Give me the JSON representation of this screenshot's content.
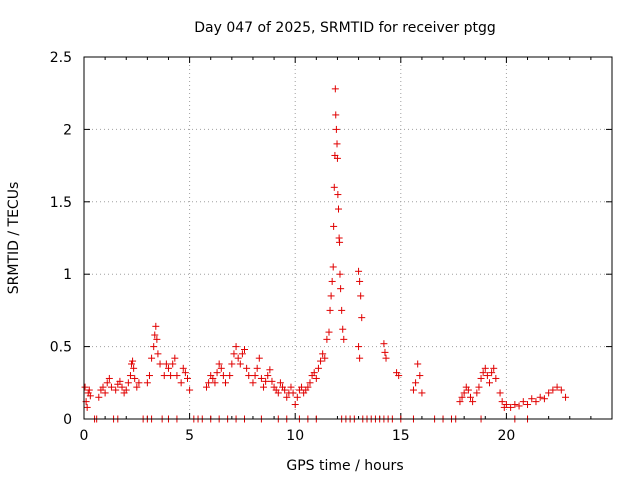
{
  "chart_data": {
    "type": "scatter",
    "title": "Day 047 of 2025, SRMTID for receiver ptgg",
    "xlabel": "GPS time / hours",
    "ylabel": "SRMTID / TECUs",
    "xlim": [
      0,
      25
    ],
    "ylim": [
      0,
      2.5
    ],
    "x_ticks": [
      0,
      5,
      10,
      15,
      20
    ],
    "x_tick_labels": [
      "0",
      "5",
      "10",
      "15",
      "20"
    ],
    "y_ticks": [
      0,
      0.5,
      1,
      1.5,
      2,
      2.5
    ],
    "y_tick_labels": [
      "0",
      "0.5",
      "1",
      "1.5",
      "2",
      "2.5"
    ],
    "grid": true,
    "marker": "plus",
    "color": "#e00000",
    "series": [
      {
        "name": "SRMTID",
        "points": [
          [
            0.05,
            0.22
          ],
          [
            0.1,
            0.12
          ],
          [
            0.15,
            0.08
          ],
          [
            0.2,
            0.18
          ],
          [
            0.25,
            0.2
          ],
          [
            0.3,
            0.16
          ],
          [
            0.7,
            0.15
          ],
          [
            0.8,
            0.2
          ],
          [
            0.9,
            0.22
          ],
          [
            1.0,
            0.18
          ],
          [
            1.1,
            0.25
          ],
          [
            1.2,
            0.28
          ],
          [
            1.3,
            0.22
          ],
          [
            1.5,
            0.2
          ],
          [
            1.6,
            0.24
          ],
          [
            1.7,
            0.26
          ],
          [
            1.8,
            0.22
          ],
          [
            1.9,
            0.18
          ],
          [
            2.0,
            0.2
          ],
          [
            2.1,
            0.25
          ],
          [
            2.2,
            0.3
          ],
          [
            2.25,
            0.38
          ],
          [
            2.3,
            0.4
          ],
          [
            2.35,
            0.35
          ],
          [
            2.4,
            0.28
          ],
          [
            2.5,
            0.22
          ],
          [
            2.6,
            0.25
          ],
          [
            3.0,
            0.25
          ],
          [
            3.1,
            0.3
          ],
          [
            3.2,
            0.42
          ],
          [
            3.3,
            0.5
          ],
          [
            3.35,
            0.58
          ],
          [
            3.4,
            0.64
          ],
          [
            3.45,
            0.55
          ],
          [
            3.5,
            0.45
          ],
          [
            3.6,
            0.38
          ],
          [
            3.8,
            0.3
          ],
          [
            3.9,
            0.38
          ],
          [
            4.0,
            0.35
          ],
          [
            4.1,
            0.3
          ],
          [
            4.2,
            0.38
          ],
          [
            4.3,
            0.42
          ],
          [
            4.4,
            0.3
          ],
          [
            4.6,
            0.25
          ],
          [
            4.7,
            0.35
          ],
          [
            4.8,
            0.32
          ],
          [
            4.9,
            0.28
          ],
          [
            5.0,
            0.2
          ],
          [
            5.8,
            0.22
          ],
          [
            5.9,
            0.25
          ],
          [
            6.0,
            0.3
          ],
          [
            6.1,
            0.28
          ],
          [
            6.2,
            0.25
          ],
          [
            6.3,
            0.32
          ],
          [
            6.4,
            0.38
          ],
          [
            6.5,
            0.35
          ],
          [
            6.6,
            0.3
          ],
          [
            6.7,
            0.25
          ],
          [
            6.9,
            0.3
          ],
          [
            7.0,
            0.38
          ],
          [
            7.1,
            0.45
          ],
          [
            7.2,
            0.5
          ],
          [
            7.3,
            0.42
          ],
          [
            7.4,
            0.38
          ],
          [
            7.5,
            0.45
          ],
          [
            7.6,
            0.48
          ],
          [
            7.7,
            0.35
          ],
          [
            7.8,
            0.3
          ],
          [
            8.0,
            0.25
          ],
          [
            8.1,
            0.3
          ],
          [
            8.2,
            0.35
          ],
          [
            8.3,
            0.42
          ],
          [
            8.4,
            0.28
          ],
          [
            8.5,
            0.22
          ],
          [
            8.6,
            0.26
          ],
          [
            8.7,
            0.3
          ],
          [
            8.8,
            0.34
          ],
          [
            8.9,
            0.26
          ],
          [
            9.0,
            0.22
          ],
          [
            9.1,
            0.2
          ],
          [
            9.2,
            0.18
          ],
          [
            9.3,
            0.25
          ],
          [
            9.4,
            0.22
          ],
          [
            9.5,
            0.2
          ],
          [
            9.6,
            0.15
          ],
          [
            9.7,
            0.18
          ],
          [
            9.8,
            0.22
          ],
          [
            9.9,
            0.18
          ],
          [
            10.0,
            0.1
          ],
          [
            10.1,
            0.15
          ],
          [
            10.2,
            0.2
          ],
          [
            10.3,
            0.22
          ],
          [
            10.4,
            0.18
          ],
          [
            10.5,
            0.2
          ],
          [
            10.6,
            0.22
          ],
          [
            10.7,
            0.25
          ],
          [
            10.8,
            0.3
          ],
          [
            10.9,
            0.32
          ],
          [
            11.0,
            0.28
          ],
          [
            11.1,
            0.35
          ],
          [
            11.2,
            0.4
          ],
          [
            11.3,
            0.45
          ],
          [
            11.4,
            0.42
          ],
          [
            11.5,
            0.55
          ],
          [
            11.6,
            0.6
          ],
          [
            11.65,
            0.75
          ],
          [
            11.7,
            0.85
          ],
          [
            11.75,
            0.95
          ],
          [
            11.8,
            1.05
          ],
          [
            11.82,
            1.33
          ],
          [
            11.85,
            1.6
          ],
          [
            11.88,
            1.82
          ],
          [
            11.9,
            2.28
          ],
          [
            11.92,
            2.1
          ],
          [
            11.95,
            2.0
          ],
          [
            11.98,
            1.9
          ],
          [
            12.0,
            1.8
          ],
          [
            12.02,
            1.55
          ],
          [
            12.05,
            1.45
          ],
          [
            12.08,
            1.25
          ],
          [
            12.1,
            1.22
          ],
          [
            12.12,
            1.0
          ],
          [
            12.15,
            0.9
          ],
          [
            12.2,
            0.75
          ],
          [
            12.25,
            0.62
          ],
          [
            12.3,
            0.55
          ],
          [
            13.0,
            1.02
          ],
          [
            13.05,
            0.95
          ],
          [
            13.1,
            0.85
          ],
          [
            13.15,
            0.7
          ],
          [
            13.0,
            0.5
          ],
          [
            13.05,
            0.42
          ],
          [
            14.2,
            0.52
          ],
          [
            14.25,
            0.46
          ],
          [
            14.3,
            0.42
          ],
          [
            14.8,
            0.32
          ],
          [
            14.9,
            0.3
          ],
          [
            15.6,
            0.2
          ],
          [
            15.7,
            0.25
          ],
          [
            15.8,
            0.38
          ],
          [
            15.9,
            0.3
          ],
          [
            16.0,
            0.18
          ],
          [
            17.8,
            0.12
          ],
          [
            17.9,
            0.15
          ],
          [
            18.0,
            0.18
          ],
          [
            18.1,
            0.22
          ],
          [
            18.2,
            0.2
          ],
          [
            18.3,
            0.15
          ],
          [
            18.4,
            0.12
          ],
          [
            18.6,
            0.18
          ],
          [
            18.7,
            0.22
          ],
          [
            18.8,
            0.28
          ],
          [
            18.9,
            0.32
          ],
          [
            19.0,
            0.35
          ],
          [
            19.1,
            0.3
          ],
          [
            19.2,
            0.25
          ],
          [
            19.3,
            0.32
          ],
          [
            19.4,
            0.35
          ],
          [
            19.5,
            0.28
          ],
          [
            19.7,
            0.18
          ],
          [
            19.8,
            0.12
          ],
          [
            19.9,
            0.08
          ],
          [
            20.0,
            0.1
          ],
          [
            20.2,
            0.08
          ],
          [
            20.4,
            0.1
          ],
          [
            20.6,
            0.09
          ],
          [
            20.8,
            0.12
          ],
          [
            21.0,
            0.1
          ],
          [
            21.2,
            0.14
          ],
          [
            21.4,
            0.12
          ],
          [
            21.6,
            0.15
          ],
          [
            21.8,
            0.14
          ],
          [
            22.0,
            0.18
          ],
          [
            22.2,
            0.2
          ],
          [
            22.4,
            0.22
          ],
          [
            22.6,
            0.2
          ],
          [
            22.8,
            0.15
          ],
          [
            0.5,
            0
          ],
          [
            0.6,
            0
          ],
          [
            1.4,
            0
          ],
          [
            1.6,
            0
          ],
          [
            2.8,
            0
          ],
          [
            3.0,
            0
          ],
          [
            3.2,
            0
          ],
          [
            3.7,
            0
          ],
          [
            4.0,
            0
          ],
          [
            4.4,
            0
          ],
          [
            5.2,
            0
          ],
          [
            5.4,
            0
          ],
          [
            5.6,
            0
          ],
          [
            6.0,
            0
          ],
          [
            6.4,
            0
          ],
          [
            6.8,
            0
          ],
          [
            7.2,
            0
          ],
          [
            7.6,
            0
          ],
          [
            8.4,
            0
          ],
          [
            9.2,
            0
          ],
          [
            9.6,
            0
          ],
          [
            10.2,
            0
          ],
          [
            10.6,
            0
          ],
          [
            11.0,
            0
          ],
          [
            12.2,
            0
          ],
          [
            12.4,
            0
          ],
          [
            12.6,
            0
          ],
          [
            12.8,
            0
          ],
          [
            13.2,
            0
          ],
          [
            13.4,
            0
          ],
          [
            13.6,
            0
          ],
          [
            13.8,
            0
          ],
          [
            14.0,
            0
          ],
          [
            14.2,
            0
          ],
          [
            14.4,
            0
          ],
          [
            14.6,
            0
          ],
          [
            15.0,
            0
          ],
          [
            15.6,
            0
          ],
          [
            16.6,
            0
          ],
          [
            17.0,
            0
          ],
          [
            17.4,
            0
          ],
          [
            17.6,
            0
          ],
          [
            18.8,
            0
          ],
          [
            20.4,
            0
          ],
          [
            21.0,
            0
          ]
        ]
      }
    ]
  }
}
